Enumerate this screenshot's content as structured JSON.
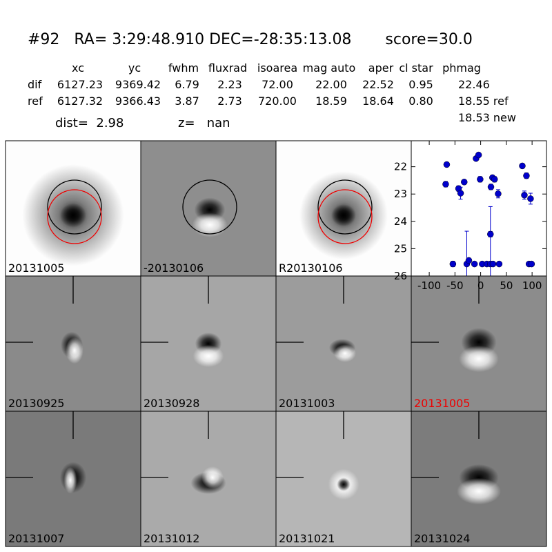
{
  "header": {
    "title": "#92   RA= 3:29:48.910 DEC=-28:35:13.08       score=30.0",
    "dist": "dist=  2.98",
    "z": "z=   nan",
    "extra": "18.53 new"
  },
  "table": {
    "columns": [
      "xc",
      "yc",
      "fwhm",
      "fluxrad",
      "isoarea",
      "mag auto",
      "aper",
      "cl star",
      "phmag"
    ],
    "rows": [
      [
        "dif",
        "6127.23",
        "9369.42",
        "6.79",
        "2.23",
        "72.00",
        "22.00",
        "22.52",
        "0.95",
        "22.46"
      ],
      [
        "ref",
        "6127.32",
        "9366.43",
        "3.87",
        "2.73",
        "720.00",
        "18.59",
        "18.64",
        "0.80",
        "18.55 ref"
      ]
    ]
  },
  "panels": [
    "20131005",
    "-20130106",
    "R20130106",
    "20130925",
    "20130928",
    "20131003",
    "20131005",
    "20131007",
    "20131012",
    "20131021",
    "20131024"
  ],
  "chart_data": {
    "type": "scatter",
    "color": "#0000cc",
    "x": [
      -68,
      -66,
      -54,
      -43,
      -39,
      -32,
      -27,
      -23,
      -12,
      -9,
      -4,
      -1,
      3,
      12,
      19,
      19,
      20,
      23,
      27,
      24,
      34,
      36,
      81,
      85,
      89,
      94,
      97,
      99
    ],
    "y": [
      22.64,
      21.92,
      25.56,
      22.8,
      22.97,
      22.56,
      25.56,
      25.43,
      25.56,
      21.7,
      21.57,
      22.46,
      25.56,
      25.56,
      25.56,
      24.47,
      22.74,
      22.4,
      22.46,
      25.56,
      22.99,
      25.56,
      21.97,
      23.04,
      22.33,
      25.56,
      23.17,
      25.56
    ],
    "errors": [
      0.1,
      0.05,
      0.1,
      0.1,
      0.22,
      0.08,
      1.2,
      0.08,
      0.05,
      0.05,
      0.05,
      0.1,
      0.05,
      0.05,
      2.1,
      0.1,
      0.1,
      0.08,
      0.1,
      0.05,
      0.15,
      0.05,
      0.08,
      0.15,
      0.1,
      0.05,
      0.2,
      0.05
    ],
    "xlim": [
      -135,
      128
    ],
    "ylim": [
      26,
      21.05
    ],
    "xticks": [
      -100,
      -50,
      0,
      50,
      100
    ],
    "yticks": [
      22,
      23,
      24,
      25,
      26
    ]
  }
}
